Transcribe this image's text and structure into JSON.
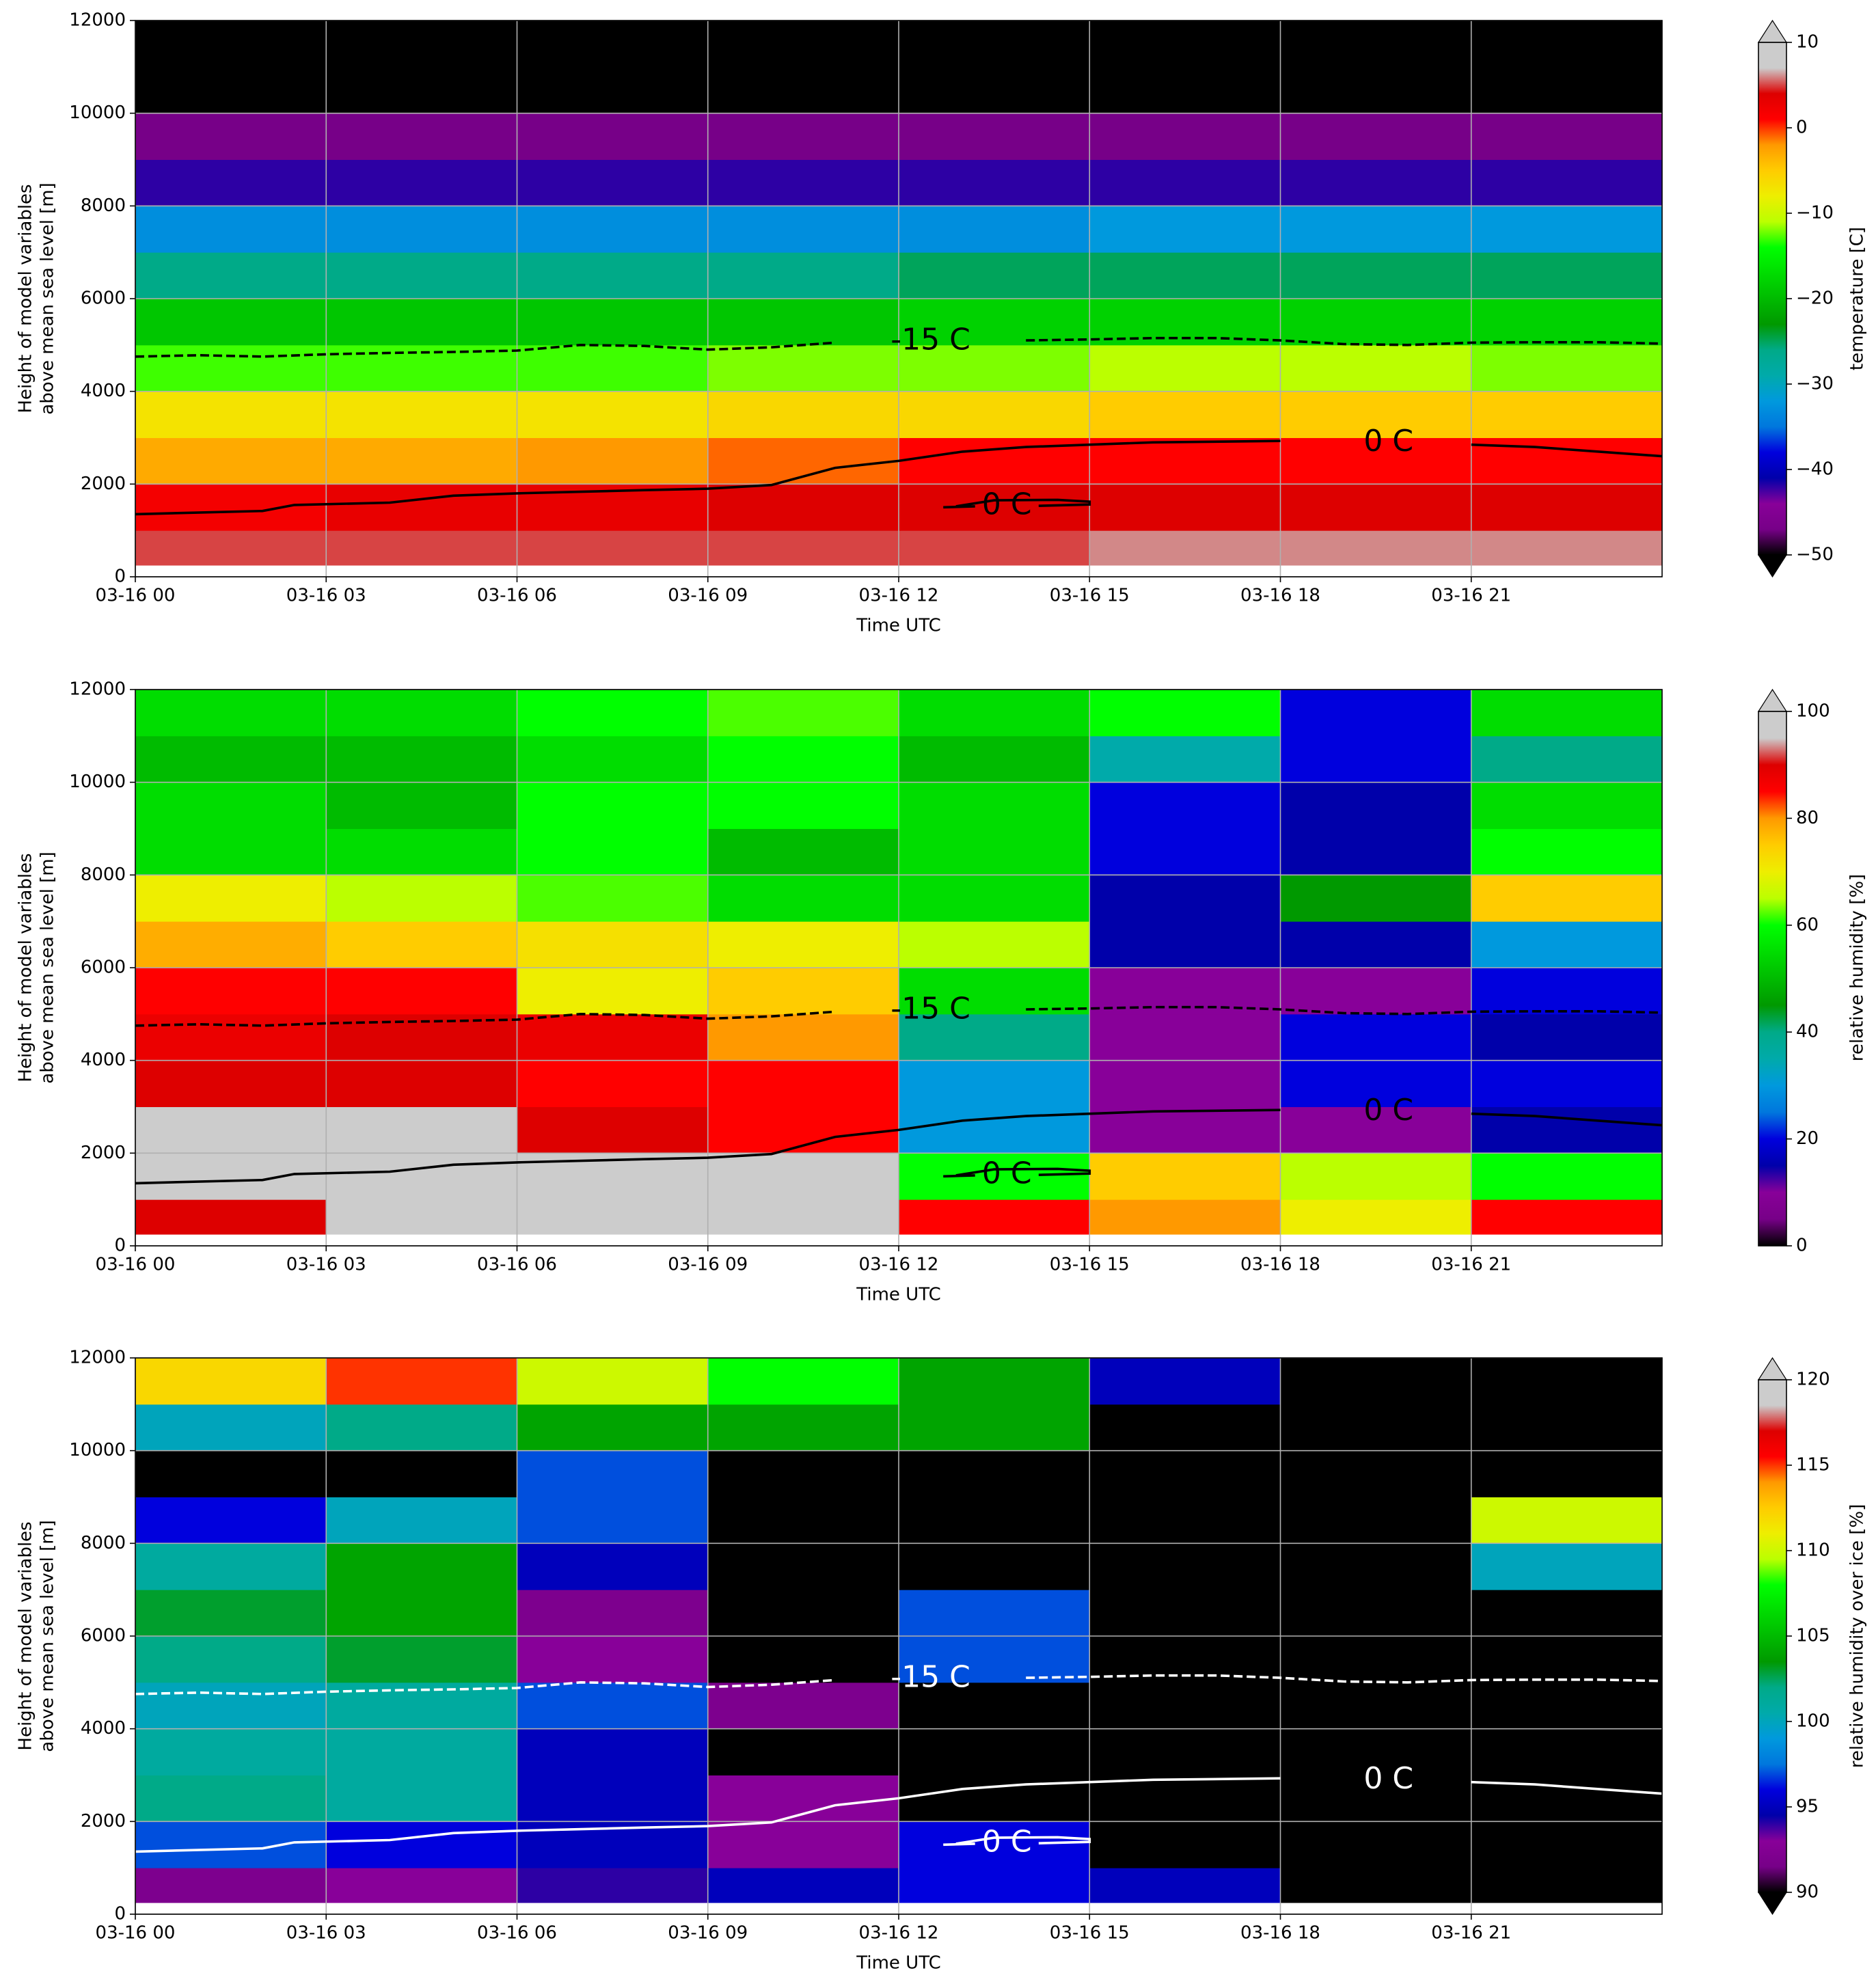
{
  "chart_data": [
    {
      "type": "heatmap",
      "xlabel": "Time UTC",
      "ylabel": [
        "Height of model variables",
        "above mean sea level [m]"
      ],
      "xlim": [
        0,
        24
      ],
      "ylim": [
        0,
        12000
      ],
      "xticks": [
        {
          "value": 0,
          "label": "03-16 00"
        },
        {
          "value": 3,
          "label": "03-16 03"
        },
        {
          "value": 6,
          "label": "03-16 06"
        },
        {
          "value": 9,
          "label": "03-16 09"
        },
        {
          "value": 12,
          "label": "03-16 12"
        },
        {
          "value": 15,
          "label": "03-16 15"
        },
        {
          "value": 18,
          "label": "03-16 18"
        },
        {
          "value": 21,
          "label": "03-16 21"
        }
      ],
      "yticks": [
        0,
        2000,
        4000,
        6000,
        8000,
        10000,
        12000
      ],
      "grid": true,
      "colormap": "nipy_spectral",
      "clim": [
        -50,
        10
      ],
      "extend": "both",
      "colorbar_label": "temperature [C]",
      "cticks": [
        {
          "value": -50,
          "label": "−50"
        },
        {
          "value": -40,
          "label": "−40"
        },
        {
          "value": -30,
          "label": "−30"
        },
        {
          "value": -20,
          "label": "−20"
        },
        {
          "value": -10,
          "label": "−10"
        },
        0,
        10
      ],
      "x_edges": [
        0,
        3,
        6,
        9,
        12,
        15,
        18,
        21,
        24
      ],
      "y_edges": [
        250,
        1000,
        2000,
        3000,
        4000,
        5000,
        6000,
        7000,
        8000,
        9000,
        10000,
        11000,
        12000
      ],
      "z": [
        [
          5,
          5,
          5,
          5,
          5,
          6,
          6,
          6
        ],
        [
          2,
          3,
          3,
          4,
          4,
          4,
          4,
          4
        ],
        [
          -3,
          -3,
          -2,
          -1,
          1,
          1,
          1,
          1
        ],
        [
          -7,
          -7,
          -7,
          -6,
          -6,
          -5,
          -5,
          -5
        ],
        [
          -13,
          -13,
          -13,
          -12,
          -12,
          -11,
          -11,
          -12
        ],
        [
          -19,
          -19,
          -19,
          -19,
          -18,
          -18,
          -18,
          -18
        ],
        [
          -26,
          -26,
          -26,
          -26,
          -25,
          -25,
          -25,
          -25
        ],
        [
          -33,
          -33,
          -33,
          -33,
          -33,
          -32,
          -32,
          -32
        ],
        [
          -42,
          -42,
          -42,
          -42,
          -42,
          -42,
          -42,
          -42
        ],
        [
          -47,
          -47,
          -47,
          -47,
          -47,
          -47,
          -47,
          -47
        ],
        [
          -55,
          -55,
          -55,
          -55,
          -55,
          -55,
          -55,
          -55
        ],
        [
          -55,
          -55,
          -55,
          -55,
          -55,
          -55,
          -55,
          -55
        ]
      ],
      "contours": [
        {
          "name": "-15 C",
          "color": "#000000",
          "dashed": true,
          "x": [
            0,
            1,
            2,
            3,
            4,
            5,
            6,
            7,
            8,
            9,
            10,
            11,
            12.5,
            14,
            15,
            16,
            17,
            18,
            19,
            20,
            21,
            22,
            23,
            24
          ],
          "y": [
            4750,
            4780,
            4750,
            4800,
            4830,
            4850,
            4880,
            5000,
            4980,
            4900,
            4950,
            5050,
            null,
            5100,
            5120,
            5150,
            5150,
            5100,
            5020,
            5000,
            5050,
            5060,
            5060,
            5030
          ]
        },
        {
          "name": "0 C",
          "color": "#000000",
          "dashed": false,
          "x": [
            0,
            2,
            2.5,
            4,
            5,
            6,
            8,
            9,
            10,
            11,
            12,
            13,
            14,
            15,
            16,
            18,
            19.7,
            21,
            22,
            24
          ],
          "y": [
            1350,
            1420,
            1550,
            1600,
            1750,
            1800,
            1870,
            1900,
            1980,
            2350,
            2500,
            2700,
            2800,
            2850,
            2900,
            2930,
            null,
            2850,
            2800,
            2600
          ]
        },
        {
          "name": "0 C",
          "color": "#000000",
          "dashed": false,
          "x": [
            12.7,
            13.2,
            13.7,
            14.2,
            15,
            15,
            14.5,
            13.5,
            12.9
          ],
          "y": [
            1500,
            1520,
            null,
            1530,
            1560,
            1620,
            1660,
            1650,
            1520
          ]
        }
      ]
    },
    {
      "type": "heatmap",
      "xlabel": "Time UTC",
      "ylabel": [
        "Height of model variables",
        "above mean sea level [m]"
      ],
      "xlim": [
        0,
        24
      ],
      "ylim": [
        0,
        12000
      ],
      "xticks": [
        {
          "value": 0,
          "label": "03-16 00"
        },
        {
          "value": 3,
          "label": "03-16 03"
        },
        {
          "value": 6,
          "label": "03-16 06"
        },
        {
          "value": 9,
          "label": "03-16 09"
        },
        {
          "value": 12,
          "label": "03-16 12"
        },
        {
          "value": 15,
          "label": "03-16 15"
        },
        {
          "value": 18,
          "label": "03-16 18"
        },
        {
          "value": 21,
          "label": "03-16 21"
        }
      ],
      "yticks": [
        0,
        2000,
        4000,
        6000,
        8000,
        10000,
        12000
      ],
      "grid": true,
      "colormap": "nipy_spectral",
      "clim": [
        0,
        100
      ],
      "extend": "max",
      "colorbar_label": "relative humidity [%]",
      "cticks": [
        0,
        20,
        40,
        60,
        80,
        100
      ],
      "x_edges": [
        0,
        3,
        6,
        9,
        12,
        15,
        18,
        21,
        24
      ],
      "y_edges": [
        250,
        1000,
        2000,
        3000,
        4000,
        5000,
        6000,
        7000,
        8000,
        9000,
        10000,
        11000,
        12000
      ],
      "z": [
        [
          90,
          100,
          100,
          95,
          85,
          80,
          70,
          85
        ],
        [
          100,
          100,
          100,
          95,
          60,
          75,
          65,
          60
        ],
        [
          100,
          100,
          90,
          85,
          30,
          10,
          10,
          15
        ],
        [
          90,
          90,
          85,
          85,
          30,
          10,
          20,
          20
        ],
        [
          88,
          90,
          88,
          80,
          40,
          10,
          20,
          15
        ],
        [
          85,
          85,
          70,
          75,
          55,
          10,
          10,
          20
        ],
        [
          78,
          75,
          72,
          70,
          65,
          15,
          15,
          30
        ],
        [
          70,
          65,
          62,
          55,
          55,
          15,
          45,
          75
        ],
        [
          55,
          55,
          60,
          50,
          55,
          20,
          15,
          60
        ],
        [
          55,
          50,
          60,
          60,
          55,
          20,
          15,
          55
        ],
        [
          50,
          50,
          55,
          60,
          50,
          35,
          20,
          40
        ],
        [
          55,
          55,
          60,
          62,
          55,
          60,
          20,
          55
        ]
      ],
      "contours": [
        {
          "name": "-15 C",
          "color": "#000000",
          "dashed": true,
          "x": [
            0,
            1,
            2,
            3,
            4,
            5,
            6,
            7,
            8,
            9,
            10,
            11,
            12.5,
            14,
            15,
            16,
            17,
            18,
            19,
            20,
            21,
            22,
            23,
            24
          ],
          "y": [
            4750,
            4780,
            4750,
            4800,
            4830,
            4850,
            4880,
            5000,
            4980,
            4900,
            4950,
            5050,
            null,
            5100,
            5120,
            5150,
            5150,
            5100,
            5020,
            5000,
            5050,
            5060,
            5060,
            5030
          ]
        },
        {
          "name": "0 C",
          "color": "#000000",
          "dashed": false,
          "x": [
            0,
            2,
            2.5,
            4,
            5,
            6,
            8,
            9,
            10,
            11,
            12,
            13,
            14,
            15,
            16,
            18,
            19.7,
            21,
            22,
            24
          ],
          "y": [
            1350,
            1420,
            1550,
            1600,
            1750,
            1800,
            1870,
            1900,
            1980,
            2350,
            2500,
            2700,
            2800,
            2850,
            2900,
            2930,
            null,
            2850,
            2800,
            2600
          ]
        },
        {
          "name": "0 C",
          "color": "#000000",
          "dashed": false,
          "x": [
            12.7,
            13.2,
            13.7,
            14.2,
            15,
            15,
            14.5,
            13.5,
            12.9
          ],
          "y": [
            1500,
            1520,
            null,
            1530,
            1560,
            1620,
            1660,
            1650,
            1520
          ]
        }
      ]
    },
    {
      "type": "heatmap",
      "xlabel": "Time UTC",
      "ylabel": [
        "Height of model variables",
        "above mean sea level [m]"
      ],
      "xlim": [
        0,
        24
      ],
      "ylim": [
        0,
        12000
      ],
      "xticks": [
        {
          "value": 0,
          "label": "03-16 00"
        },
        {
          "value": 3,
          "label": "03-16 03"
        },
        {
          "value": 6,
          "label": "03-16 06"
        },
        {
          "value": 9,
          "label": "03-16 09"
        },
        {
          "value": 12,
          "label": "03-16 12"
        },
        {
          "value": 15,
          "label": "03-16 15"
        },
        {
          "value": 18,
          "label": "03-16 18"
        },
        {
          "value": 21,
          "label": "03-16 21"
        }
      ],
      "yticks": [
        0,
        2000,
        4000,
        6000,
        8000,
        10000,
        12000
      ],
      "grid": true,
      "colormap": "nipy_spectral",
      "clim": [
        90,
        120
      ],
      "extend": "both",
      "colorbar_label": "relative humidity over ice [%]",
      "cticks": [
        90,
        95,
        100,
        105,
        110,
        115,
        120
      ],
      "x_edges": [
        0,
        3,
        6,
        9,
        12,
        15,
        18,
        21,
        24
      ],
      "y_edges": [
        250,
        1000,
        2000,
        3000,
        4000,
        5000,
        6000,
        7000,
        8000,
        9000,
        10000,
        11000,
        12000
      ],
      "z": [
        [
          92,
          93,
          94,
          95,
          96,
          95,
          85,
          85
        ],
        [
          97,
          96,
          95,
          93,
          96,
          85,
          85,
          85
        ],
        [
          102,
          101,
          95,
          93,
          85,
          85,
          85,
          85
        ],
        [
          101,
          101,
          95,
          85,
          85,
          85,
          85,
          85
        ],
        [
          100,
          101,
          97,
          92,
          85,
          85,
          85,
          85
        ],
        [
          102,
          103,
          93,
          85,
          97,
          85,
          85,
          85
        ],
        [
          103,
          104,
          92,
          85,
          97,
          85,
          85,
          85
        ],
        [
          101,
          104,
          95,
          85,
          85,
          85,
          85,
          100
        ],
        [
          96,
          100,
          97,
          85,
          85,
          85,
          85,
          110
        ],
        [
          85,
          85,
          97,
          85,
          85,
          85,
          85,
          85
        ],
        [
          100,
          102,
          104,
          104,
          104,
          85,
          85,
          85
        ],
        [
          112,
          115,
          110,
          108,
          104,
          95,
          85,
          85
        ]
      ],
      "contours": [
        {
          "name": "-15 C",
          "color": "#ffffff",
          "dashed": true,
          "x": [
            0,
            1,
            2,
            3,
            4,
            5,
            6,
            7,
            8,
            9,
            10,
            11,
            12.5,
            14,
            15,
            16,
            17,
            18,
            19,
            20,
            21,
            22,
            23,
            24
          ],
          "y": [
            4750,
            4780,
            4750,
            4800,
            4830,
            4850,
            4880,
            5000,
            4980,
            4900,
            4950,
            5050,
            null,
            5100,
            5120,
            5150,
            5150,
            5100,
            5020,
            5000,
            5050,
            5060,
            5060,
            5030
          ]
        },
        {
          "name": "0 C",
          "color": "#ffffff",
          "dashed": false,
          "x": [
            0,
            2,
            2.5,
            4,
            5,
            6,
            8,
            9,
            10,
            11,
            12,
            13,
            14,
            15,
            16,
            18,
            19.7,
            21,
            22,
            24
          ],
          "y": [
            1350,
            1420,
            1550,
            1600,
            1750,
            1800,
            1870,
            1900,
            1980,
            2350,
            2500,
            2700,
            2800,
            2850,
            2900,
            2930,
            null,
            2850,
            2800,
            2600
          ]
        },
        {
          "name": "0 C",
          "color": "#ffffff",
          "dashed": false,
          "x": [
            12.7,
            13.2,
            13.7,
            14.2,
            15,
            15,
            14.5,
            13.5,
            12.9
          ],
          "y": [
            1500,
            1520,
            null,
            1530,
            1560,
            1620,
            1660,
            1650,
            1520
          ]
        }
      ]
    }
  ]
}
